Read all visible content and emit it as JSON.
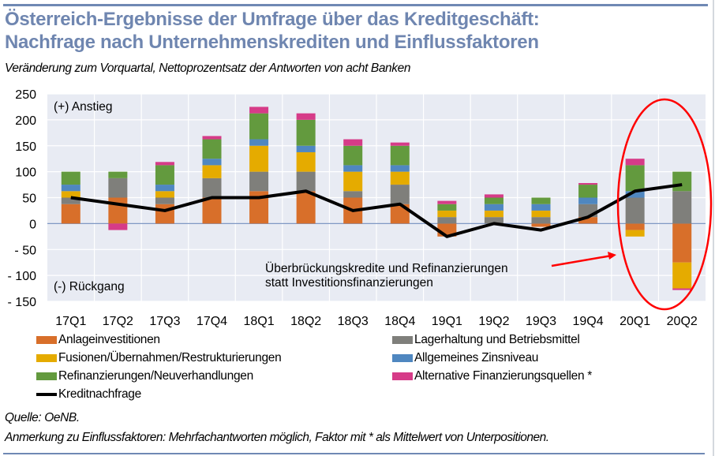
{
  "header": {
    "title_line1": "Österreich-Ergebnisse der Umfrage über das Kreditgeschäft:",
    "title_line2": "Nachfrage nach Unternehmenskrediten und Einflussfaktoren",
    "subtitle": "Veränderung zum Vorquartal, Nettoprozentsatz der Antworten von acht Banken"
  },
  "footer": {
    "source": "Quelle: OeNB.",
    "note": "Anmerkung zu Einflussfaktoren: Mehrfachantworten möglich, Faktor mit * als Mittelwert von Unterpositionen."
  },
  "chart_data": {
    "type": "bar",
    "stacked": true,
    "title": "Österreich-Ergebnisse der Umfrage über das Kreditgeschäft: Nachfrage nach Unternehmenskrediten und Einflussfaktoren",
    "subtitle": "Veränderung zum Vorquartal, Nettoprozentsatz der Antworten von acht Banken",
    "xlabel": "",
    "ylabel": "",
    "ylim": [
      -150,
      250
    ],
    "yticks": [
      250,
      200,
      150,
      100,
      50,
      0,
      -50,
      -100,
      -150
    ],
    "ytick_labels": [
      "250",
      "200",
      "150",
      "100",
      "50",
      "0",
      "- 50",
      "- 100",
      "- 150"
    ],
    "grid": true,
    "legend_position": "bottom",
    "categories": [
      "17Q1",
      "17Q2",
      "17Q3",
      "17Q4",
      "18Q1",
      "18Q2",
      "18Q3",
      "18Q4",
      "19Q1",
      "19Q2",
      "19Q3",
      "19Q4",
      "20Q1",
      "20Q2"
    ],
    "series": [
      {
        "name": "Anlageinvestitionen",
        "color": "#d86f2a",
        "values": [
          37.5,
          50,
          37.5,
          50,
          62.5,
          62.5,
          50,
          37.5,
          -25,
          0,
          -6.25,
          12.5,
          -12.5,
          -75
        ]
      },
      {
        "name": "Lagerhaltung und Betriebsmittel",
        "color": "#7f7f7b",
        "values": [
          12.5,
          37.5,
          12.5,
          37.5,
          37.5,
          37.5,
          12.5,
          37.5,
          12.5,
          12.5,
          12.5,
          25,
          50,
          62.5
        ]
      },
      {
        "name": "Fusionen/Übernahmen/Restrukturierungen",
        "color": "#e5ab00",
        "values": [
          12.5,
          0,
          12.5,
          25,
          50,
          37.5,
          37.5,
          25,
          12.5,
          12.5,
          12.5,
          0,
          -12.5,
          -50
        ]
      },
      {
        "name": "Allgemeines Zinsniveau",
        "color": "#4f87c0",
        "values": [
          12.5,
          0,
          12.5,
          12.5,
          12.5,
          12.5,
          12.5,
          12.5,
          0,
          12.5,
          12.5,
          12.5,
          12.5,
          0
        ]
      },
      {
        "name": "Refinanzierungen/Neuverhandlungen",
        "color": "#639a3e",
        "values": [
          25,
          12.5,
          37.5,
          37.5,
          50,
          50,
          37.5,
          37.5,
          12.5,
          12.5,
          12.5,
          25,
          50,
          37.5
        ]
      },
      {
        "name": "Alternative Finanzierungsquellen *",
        "color": "#d63b88",
        "values": [
          0,
          -12.5,
          6.25,
          6.25,
          12.5,
          12.5,
          12.5,
          6.25,
          6.25,
          6.25,
          0,
          3.125,
          12.5,
          -3.125
        ]
      }
    ],
    "line_series": {
      "name": "Kreditnachfrage",
      "color": "#000000",
      "values": [
        50,
        37.5,
        25,
        50,
        50,
        62.5,
        25,
        37.5,
        -25,
        0,
        -12.5,
        12.5,
        62.5,
        75
      ]
    },
    "annotations": {
      "top_label": "(+) Anstieg",
      "bottom_label": "(-) Rückgang",
      "callout_line1": "Überbrückungskredite und Refinanzierungen",
      "callout_line2": "statt Investitionsfinanzierungen",
      "highlight": "20Q1–20Q2 circled in red",
      "highlight_color": "#ff0000"
    }
  },
  "legend": {
    "items": [
      {
        "label": "Anlageinvestitionen",
        "color": "#d86f2a",
        "kind": "bar"
      },
      {
        "label": "Lagerhaltung und Betriebsmittel",
        "color": "#7f7f7b",
        "kind": "bar"
      },
      {
        "label": "Fusionen/Übernahmen/Restrukturierungen",
        "color": "#e5ab00",
        "kind": "bar"
      },
      {
        "label": "Allgemeines Zinsniveau",
        "color": "#4f87c0",
        "kind": "bar"
      },
      {
        "label": "Refinanzierungen/Neuverhandlungen",
        "color": "#639a3e",
        "kind": "bar"
      },
      {
        "label": "Alternative Finanzierungsquellen *",
        "color": "#d63b88",
        "kind": "bar"
      },
      {
        "label": "Kreditnachfrage",
        "color": "#000000",
        "kind": "line"
      }
    ]
  },
  "colors": {
    "title": "#6f86b0",
    "rule": "#6f89b4",
    "plot_background": "#e8ebf3",
    "zero_line": "#8098c4"
  }
}
